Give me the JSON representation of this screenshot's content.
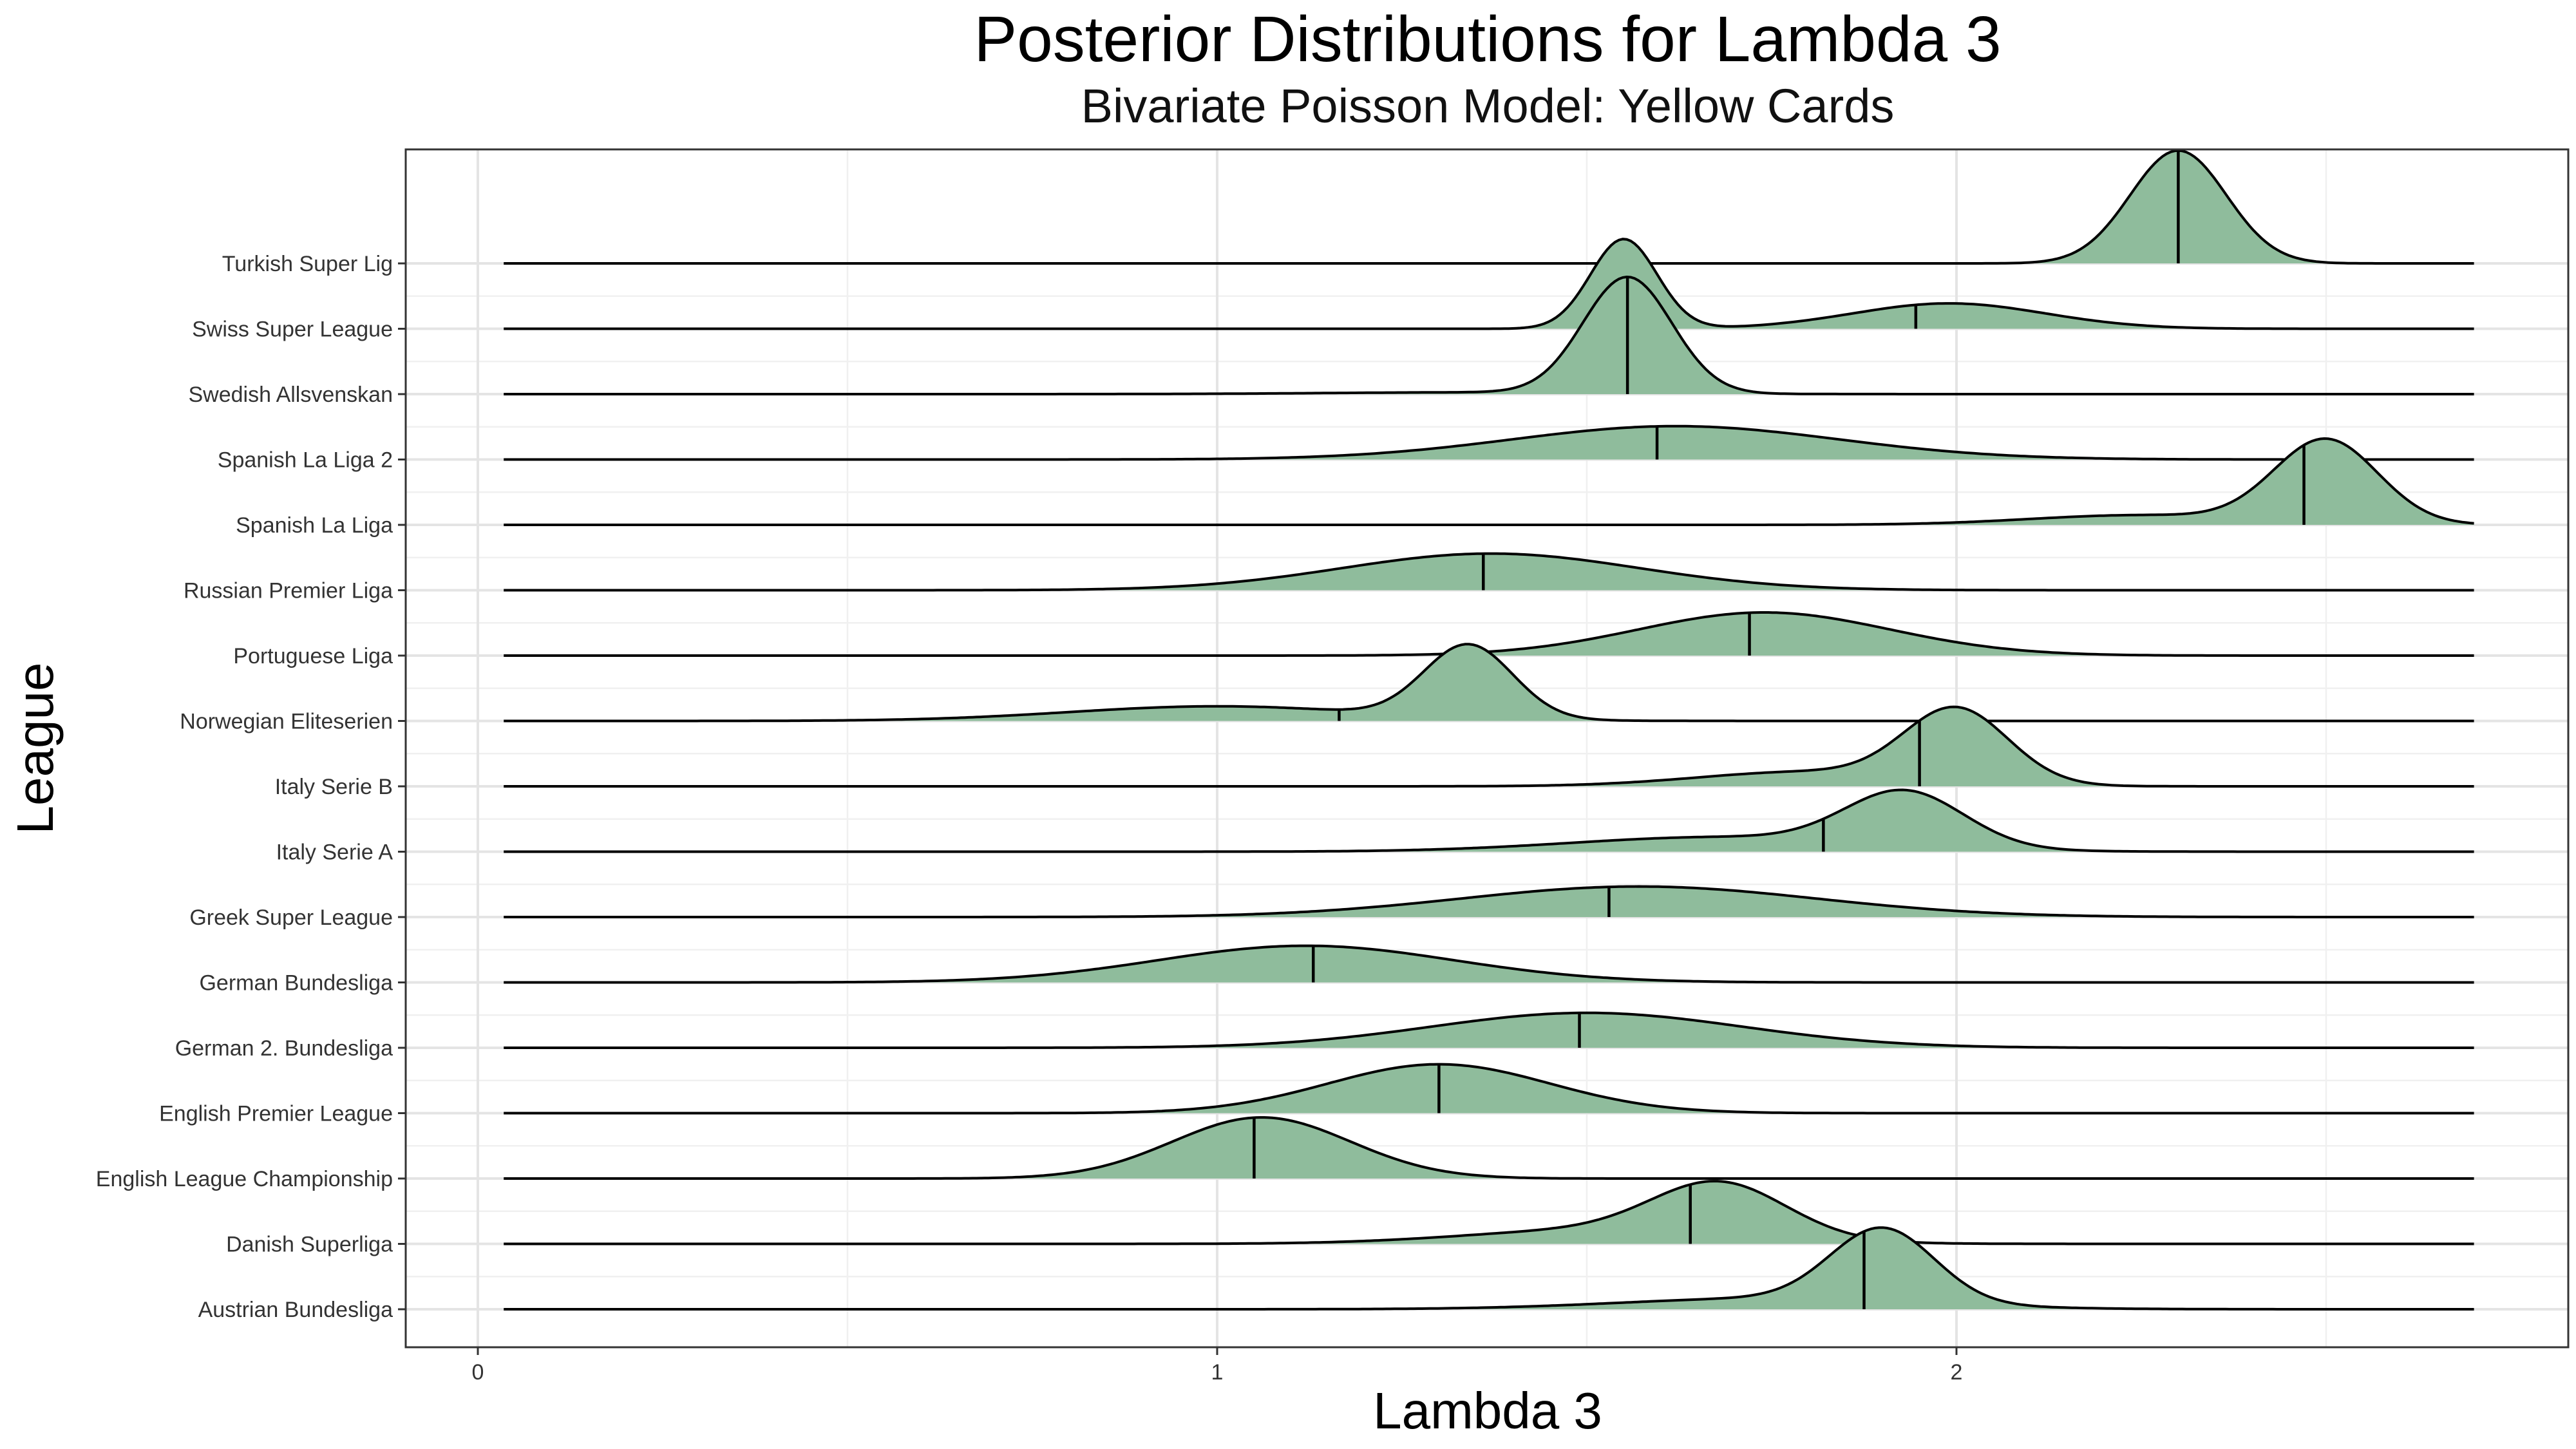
{
  "chart_data": {
    "type": "ridgeline",
    "title": "Posterior Distributions for Lambda 3",
    "subtitle": "Bivariate Poisson Model: Yellow Cards",
    "xlabel": "Lambda 3",
    "ylabel": "League",
    "x_ticks": [
      0,
      1,
      2
    ],
    "xlim": [
      -0.1,
      2.85
    ],
    "density_range": [
      0.035,
      2.7
    ],
    "fill_color": "#8fbc9c",
    "grid": true,
    "series": [
      {
        "name": "Turkish Super Lig",
        "median": 2.3,
        "components": [
          {
            "w": 1.0,
            "mu": 2.3,
            "sd": 0.065
          }
        ]
      },
      {
        "name": "Swiss Super League",
        "median": 1.945,
        "components": [
          {
            "w": 0.55,
            "mu": 1.55,
            "sd": 0.045
          },
          {
            "w": 0.45,
            "mu": 1.99,
            "sd": 0.13
          }
        ]
      },
      {
        "name": "Swedish Allsvenskan",
        "median": 1.555,
        "components": [
          {
            "w": 0.95,
            "mu": 1.555,
            "sd": 0.06
          },
          {
            "w": 0.05,
            "mu": 1.35,
            "sd": 0.2
          }
        ]
      },
      {
        "name": "Spanish La Liga 2",
        "median": 1.595,
        "components": [
          {
            "w": 1.0,
            "mu": 1.62,
            "sd": 0.22
          }
        ]
      },
      {
        "name": "Spanish La Liga",
        "median": 2.47,
        "components": [
          {
            "w": 0.8,
            "mu": 2.5,
            "sd": 0.07
          },
          {
            "w": 0.2,
            "mu": 2.25,
            "sd": 0.15
          }
        ]
      },
      {
        "name": "Russian Premier Liga",
        "median": 1.36,
        "components": [
          {
            "w": 1.0,
            "mu": 1.37,
            "sd": 0.2
          }
        ]
      },
      {
        "name": "Portuguese Liga",
        "median": 1.72,
        "components": [
          {
            "w": 1.0,
            "mu": 1.74,
            "sd": 0.17
          }
        ]
      },
      {
        "name": "Norwegian Eliteserien",
        "median": 1.165,
        "components": [
          {
            "w": 0.6,
            "mu": 1.34,
            "sd": 0.06
          },
          {
            "w": 0.4,
            "mu": 1.0,
            "sd": 0.2
          }
        ]
      },
      {
        "name": "Italy Serie B",
        "median": 1.95,
        "components": [
          {
            "w": 0.7,
            "mu": 2.0,
            "sd": 0.07
          },
          {
            "w": 0.3,
            "mu": 1.8,
            "sd": 0.15
          }
        ]
      },
      {
        "name": "Italy Serie A",
        "median": 1.82,
        "components": [
          {
            "w": 0.6,
            "mu": 1.93,
            "sd": 0.08
          },
          {
            "w": 0.4,
            "mu": 1.68,
            "sd": 0.2
          }
        ]
      },
      {
        "name": "Greek Super League",
        "median": 1.53,
        "components": [
          {
            "w": 1.0,
            "mu": 1.57,
            "sd": 0.24
          }
        ]
      },
      {
        "name": "German Bundesliga",
        "median": 1.13,
        "components": [
          {
            "w": 1.0,
            "mu": 1.12,
            "sd": 0.2
          }
        ]
      },
      {
        "name": "German 2. Bundesliga",
        "median": 1.49,
        "components": [
          {
            "w": 1.0,
            "mu": 1.5,
            "sd": 0.21
          }
        ]
      },
      {
        "name": "English Premier League",
        "median": 1.3,
        "components": [
          {
            "w": 1.0,
            "mu": 1.3,
            "sd": 0.15
          }
        ]
      },
      {
        "name": "English League Championship",
        "median": 1.05,
        "components": [
          {
            "w": 1.0,
            "mu": 1.06,
            "sd": 0.12
          }
        ]
      },
      {
        "name": "Danish Superliga",
        "median": 1.64,
        "components": [
          {
            "w": 0.65,
            "mu": 1.68,
            "sd": 0.09
          },
          {
            "w": 0.35,
            "mu": 1.52,
            "sd": 0.18
          }
        ]
      },
      {
        "name": "Austrian Bundesliga",
        "median": 1.875,
        "components": [
          {
            "w": 0.7,
            "mu": 1.9,
            "sd": 0.07
          },
          {
            "w": 0.3,
            "mu": 1.75,
            "sd": 0.2
          }
        ]
      }
    ]
  }
}
